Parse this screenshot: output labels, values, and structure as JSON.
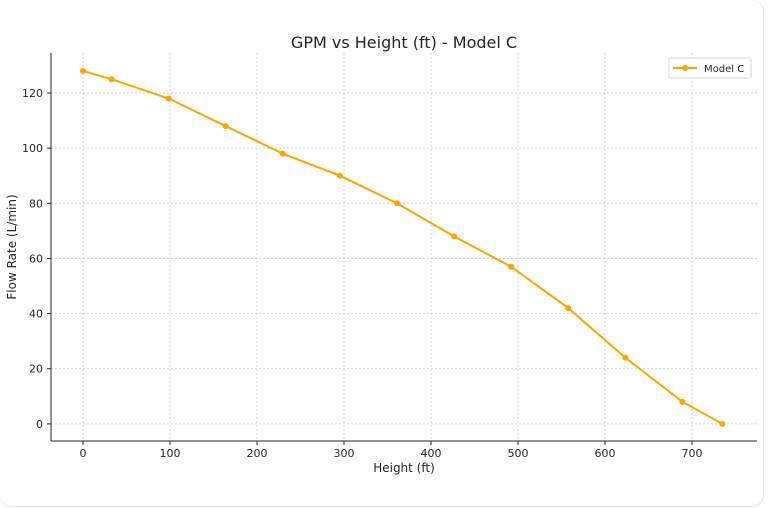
{
  "chart_data": {
    "type": "line",
    "title": "GPM vs Height (ft) - Model C",
    "xlabel": "Height (ft)",
    "ylabel": "Flow Rate (L/min)",
    "xlim": [
      -36.8,
      774.7
    ],
    "ylim": [
      -6.2,
      134.5
    ],
    "xticks": [
      0,
      100,
      200,
      300,
      400,
      500,
      600,
      700
    ],
    "yticks": [
      0,
      20,
      40,
      60,
      80,
      100,
      120
    ],
    "grid": true,
    "legend": {
      "placement": "top-right",
      "entries": [
        "Model C"
      ]
    },
    "color": "#FFA500",
    "series": [
      {
        "name": "Model C",
        "x": [
          0,
          32.8,
          98.4,
          164.0,
          229.7,
          295.3,
          360.9,
          426.5,
          492.1,
          557.7,
          623.4,
          689.0,
          735.0
        ],
        "y": [
          128,
          125,
          118,
          108,
          98,
          90,
          80,
          68,
          57,
          42,
          24,
          8,
          0
        ]
      }
    ]
  }
}
